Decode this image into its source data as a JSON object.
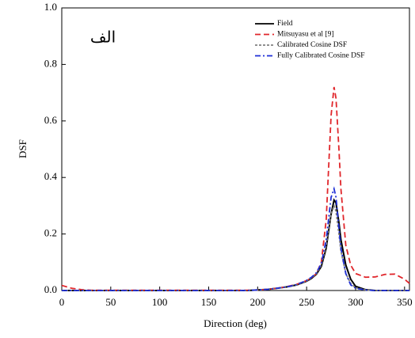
{
  "chart_data": {
    "type": "line",
    "annotation": "الف",
    "xlabel": "Direction (deg)",
    "ylabel": "DSF",
    "x": [
      0,
      10,
      20,
      30,
      40,
      50,
      60,
      70,
      80,
      90,
      100,
      110,
      120,
      130,
      140,
      150,
      160,
      170,
      180,
      190,
      200,
      210,
      220,
      230,
      240,
      250,
      255,
      260,
      265,
      270,
      272,
      275,
      278,
      280,
      283,
      285,
      290,
      295,
      300,
      310,
      320,
      330,
      340,
      350,
      355
    ],
    "series": [
      {
        "name": "Field",
        "color": "#000000",
        "style": "solid",
        "values": [
          0,
          0,
          0,
          0,
          0,
          0,
          0,
          0,
          0,
          0,
          0,
          0,
          0,
          0,
          0,
          0,
          0,
          0,
          0,
          0,
          0.002,
          0.004,
          0.008,
          0.013,
          0.02,
          0.033,
          0.043,
          0.058,
          0.085,
          0.15,
          0.2,
          0.27,
          0.32,
          0.31,
          0.24,
          0.18,
          0.09,
          0.04,
          0.015,
          0.003,
          0,
          0,
          0,
          0,
          0
        ]
      },
      {
        "name": "Mitsuyasu et al [9]",
        "color": "#e0262b",
        "style": "dash",
        "values": [
          0.018,
          0.008,
          0.003,
          0.001,
          0.001,
          0.001,
          0.001,
          0.001,
          0.001,
          0.001,
          0.001,
          0.001,
          0.001,
          0.001,
          0.001,
          0.001,
          0.001,
          0.001,
          0.001,
          0.001,
          0.002,
          0.004,
          0.008,
          0.014,
          0.022,
          0.035,
          0.045,
          0.06,
          0.1,
          0.25,
          0.4,
          0.62,
          0.72,
          0.68,
          0.5,
          0.36,
          0.16,
          0.09,
          0.06,
          0.047,
          0.048,
          0.057,
          0.058,
          0.04,
          0.025
        ]
      },
      {
        "name": "Calibrated Cosine DSF",
        "color": "#808080",
        "style": "short-dash",
        "values": [
          0,
          0,
          0,
          0,
          0,
          0,
          0,
          0,
          0,
          0,
          0,
          0,
          0,
          0,
          0,
          0,
          0,
          0,
          0,
          0,
          0.002,
          0.004,
          0.008,
          0.013,
          0.02,
          0.034,
          0.045,
          0.06,
          0.09,
          0.16,
          0.21,
          0.27,
          0.3,
          0.28,
          0.2,
          0.14,
          0.06,
          0.025,
          0.01,
          0.002,
          0,
          0,
          0,
          0,
          0
        ]
      },
      {
        "name": "Fully Calibrated Cosine DSF",
        "color": "#1f2fd6",
        "style": "dash-dot",
        "values": [
          0,
          0,
          0,
          0,
          0,
          0,
          0,
          0,
          0,
          0,
          0,
          0,
          0,
          0,
          0,
          0,
          0,
          0,
          0,
          0,
          0.002,
          0.004,
          0.008,
          0.013,
          0.021,
          0.036,
          0.047,
          0.063,
          0.095,
          0.18,
          0.24,
          0.33,
          0.36,
          0.33,
          0.22,
          0.15,
          0.06,
          0.02,
          0.008,
          0.002,
          0,
          0,
          0,
          0,
          0
        ]
      }
    ],
    "xlim": [
      0,
      355
    ],
    "xticks": [
      0,
      50,
      100,
      150,
      200,
      250,
      300,
      350
    ],
    "ylim": [
      0,
      1
    ],
    "yticks": [
      {
        "value": 0,
        "label": "0.0"
      },
      {
        "value": 0.2,
        "label": "0.2"
      },
      {
        "value": 0.4,
        "label": "0.4"
      },
      {
        "value": 0.6,
        "label": "0.6"
      },
      {
        "value": 0.8,
        "label": "0.8"
      },
      {
        "value": 1,
        "label": "1.0"
      }
    ],
    "legend": "upper right"
  }
}
